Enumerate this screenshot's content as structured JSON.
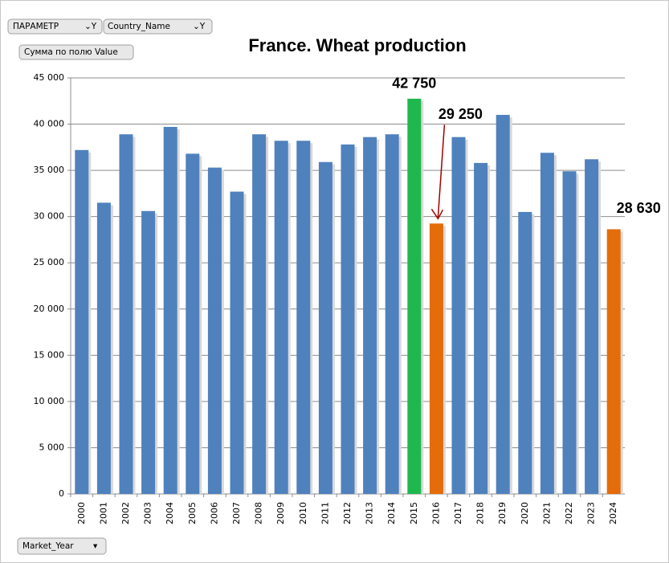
{
  "pivot_fields": {
    "filters": [
      "ПАРАМЕТР",
      "Country_Name"
    ],
    "measure": "Сумма по полю Value",
    "axis_field": "Market_Year"
  },
  "chart_data": {
    "type": "bar",
    "title": "France. Wheat production",
    "categories": [
      "2000",
      "2001",
      "2002",
      "2003",
      "2004",
      "2005",
      "2006",
      "2007",
      "2008",
      "2009",
      "2010",
      "2011",
      "2012",
      "2013",
      "2014",
      "2015",
      "2016",
      "2017",
      "2018",
      "2019",
      "2020",
      "2021",
      "2022",
      "2023",
      "2024"
    ],
    "values": [
      37200,
      31500,
      38900,
      30600,
      39700,
      36800,
      35300,
      32700,
      38900,
      38200,
      38200,
      35900,
      37800,
      38600,
      38900,
      42750,
      29250,
      38600,
      35800,
      41000,
      30500,
      36900,
      34900,
      36200,
      28630
    ],
    "value_labels": [
      null,
      null,
      null,
      null,
      null,
      null,
      null,
      null,
      null,
      null,
      null,
      null,
      null,
      null,
      null,
      "42 750",
      "29 250",
      null,
      null,
      null,
      null,
      null,
      null,
      null,
      "28 630"
    ],
    "colors": [
      "#4f81bd",
      "#4f81bd",
      "#4f81bd",
      "#4f81bd",
      "#4f81bd",
      "#4f81bd",
      "#4f81bd",
      "#4f81bd",
      "#4f81bd",
      "#4f81bd",
      "#4f81bd",
      "#4f81bd",
      "#4f81bd",
      "#4f81bd",
      "#4f81bd",
      "#1fb84f",
      "#e46c0a",
      "#4f81bd",
      "#4f81bd",
      "#4f81bd",
      "#4f81bd",
      "#4f81bd",
      "#4f81bd",
      "#4f81bd",
      "#e46c0a"
    ],
    "value_label_colors": [
      null,
      null,
      null,
      null,
      null,
      null,
      null,
      null,
      null,
      null,
      null,
      null,
      null,
      null,
      null,
      "#4f6228",
      "#b35c1e",
      null,
      null,
      null,
      null,
      null,
      null,
      null,
      "#b35c1e"
    ],
    "ylim": [
      0,
      45000
    ],
    "yticks": [
      0,
      {
        "value": 5000,
        "label": "5 000"
      },
      {
        "value": 10000,
        "label": "10 000"
      },
      {
        "value": 15000,
        "label": "15 000"
      },
      {
        "value": 20000,
        "label": "20 000"
      },
      {
        "value": 25000,
        "label": "25 000"
      },
      {
        "value": 30000,
        "label": "30 000"
      },
      {
        "value": 35000,
        "label": "35 000"
      },
      {
        "value": 40000,
        "label": "40 000"
      },
      {
        "value": 45000,
        "label": "45 000"
      }
    ],
    "grid": true
  }
}
